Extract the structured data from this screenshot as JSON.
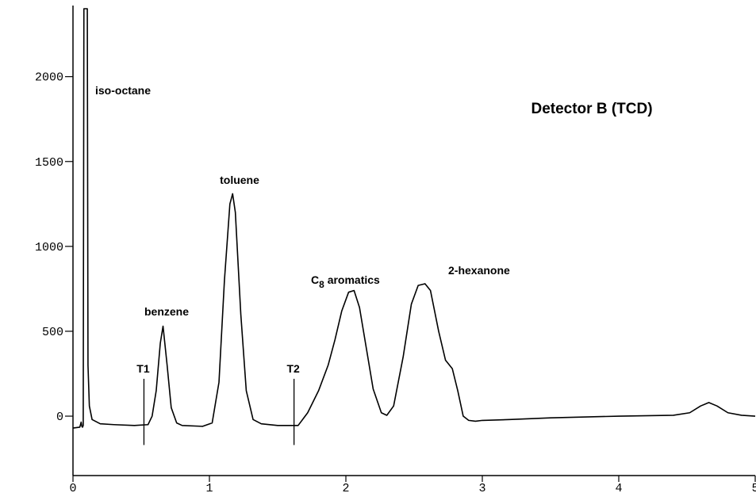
{
  "chart_data": {
    "type": "line",
    "title": "Detector B (TCD)",
    "xlim": [
      0,
      5
    ],
    "ylim": [
      -350,
      2400
    ],
    "xticks": [
      0,
      1,
      2,
      3,
      4,
      5
    ],
    "yticks": [
      0,
      500,
      1000,
      1500,
      2000
    ],
    "color": "#000000",
    "x": [
      0,
      0.05,
      0.06,
      0.065,
      0.07,
      0.075,
      0.08,
      0.085,
      0.1,
      0.105,
      0.11,
      0.12,
      0.14,
      0.2,
      0.3,
      0.45,
      0.55,
      0.58,
      0.61,
      0.64,
      0.66,
      0.69,
      0.72,
      0.76,
      0.8,
      0.95,
      1.02,
      1.07,
      1.11,
      1.15,
      1.17,
      1.19,
      1.23,
      1.27,
      1.32,
      1.38,
      1.5,
      1.65,
      1.72,
      1.8,
      1.87,
      1.92,
      1.97,
      2.02,
      2.06,
      2.1,
      2.15,
      2.2,
      2.26,
      2.3,
      2.35,
      2.42,
      2.48,
      2.53,
      2.58,
      2.62,
      2.68,
      2.73,
      2.78,
      2.82,
      2.86,
      2.9,
      2.95,
      3.0,
      3.2,
      3.5,
      4.0,
      4.4,
      4.52,
      4.6,
      4.66,
      4.72,
      4.8,
      4.9,
      5.0
    ],
    "values": [
      -70,
      -65,
      -35,
      -60,
      -65,
      -55,
      2400,
      2400,
      2400,
      2400,
      300,
      60,
      -20,
      -45,
      -50,
      -55,
      -50,
      0,
      150,
      430,
      530,
      300,
      50,
      -40,
      -55,
      -60,
      -40,
      200,
      800,
      1250,
      1310,
      1200,
      600,
      150,
      -20,
      -45,
      -55,
      -55,
      20,
      150,
      300,
      450,
      620,
      730,
      740,
      640,
      400,
      160,
      20,
      5,
      60,
      350,
      660,
      770,
      780,
      740,
      500,
      330,
      280,
      150,
      0,
      -25,
      -30,
      -25,
      -20,
      -10,
      0,
      5,
      20,
      60,
      80,
      60,
      20,
      5,
      0
    ],
    "annotations": [
      {
        "text": "T1",
        "x": 0.52,
        "y": [
          -170,
          220
        ]
      },
      {
        "text": "T2",
        "x": 1.62,
        "y": [
          -170,
          220
        ]
      }
    ],
    "peak_labels": [
      "iso-octane",
      "benzene",
      "toluene",
      "C8 aromatics",
      "2-hexanone"
    ]
  }
}
